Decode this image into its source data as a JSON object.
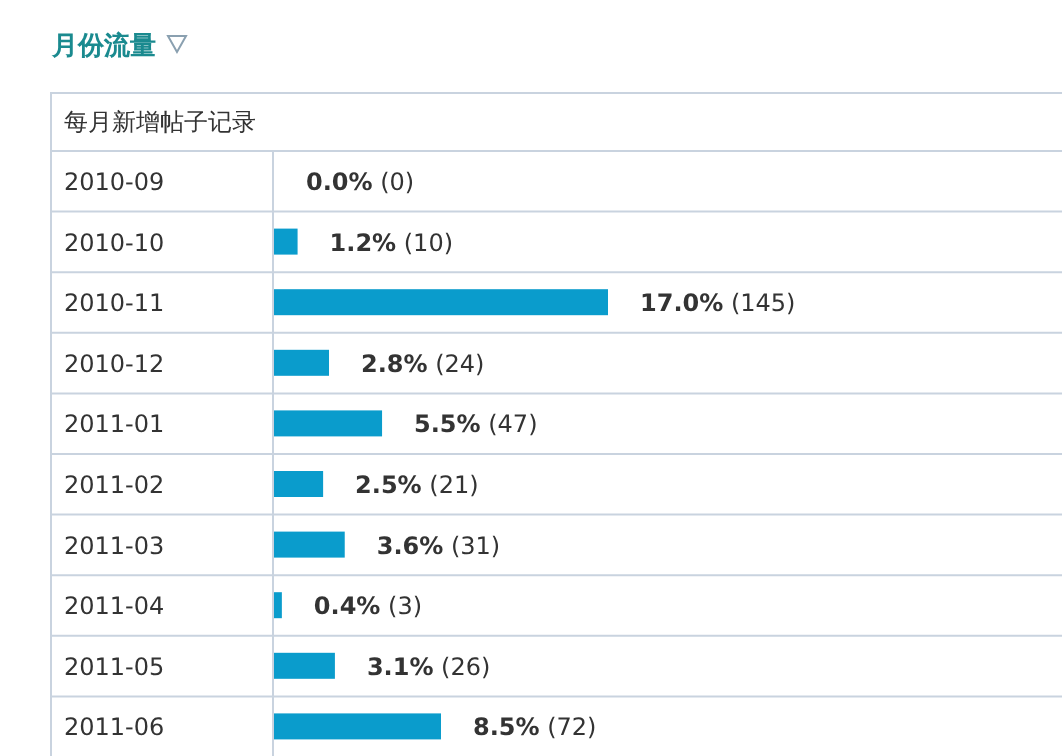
{
  "chart_data": {
    "type": "bar",
    "orientation": "horizontal",
    "title": "月份流量",
    "subtitle": "每月新增帖子记录",
    "color": "#0a9ccc",
    "categories": [
      "2010-09",
      "2010-10",
      "2010-11",
      "2010-12",
      "2011-01",
      "2011-02",
      "2011-03",
      "2011-04",
      "2011-05",
      "2011-06"
    ],
    "values": [
      0.0,
      1.2,
      17.0,
      2.8,
      5.5,
      2.5,
      3.6,
      0.4,
      3.1,
      8.5
    ],
    "value_labels": [
      "**0.0%** (0)",
      "**1.2%** (10)",
      "**17.0%** (145)",
      "**2.8%** (24)",
      "**5.5%** (47)",
      "**2.5%** (21)",
      "**3.6%** (31)",
      "**0.4%** (3)",
      "**3.1%** (26)",
      "**8.5%** (72)"
    ]
  }
}
